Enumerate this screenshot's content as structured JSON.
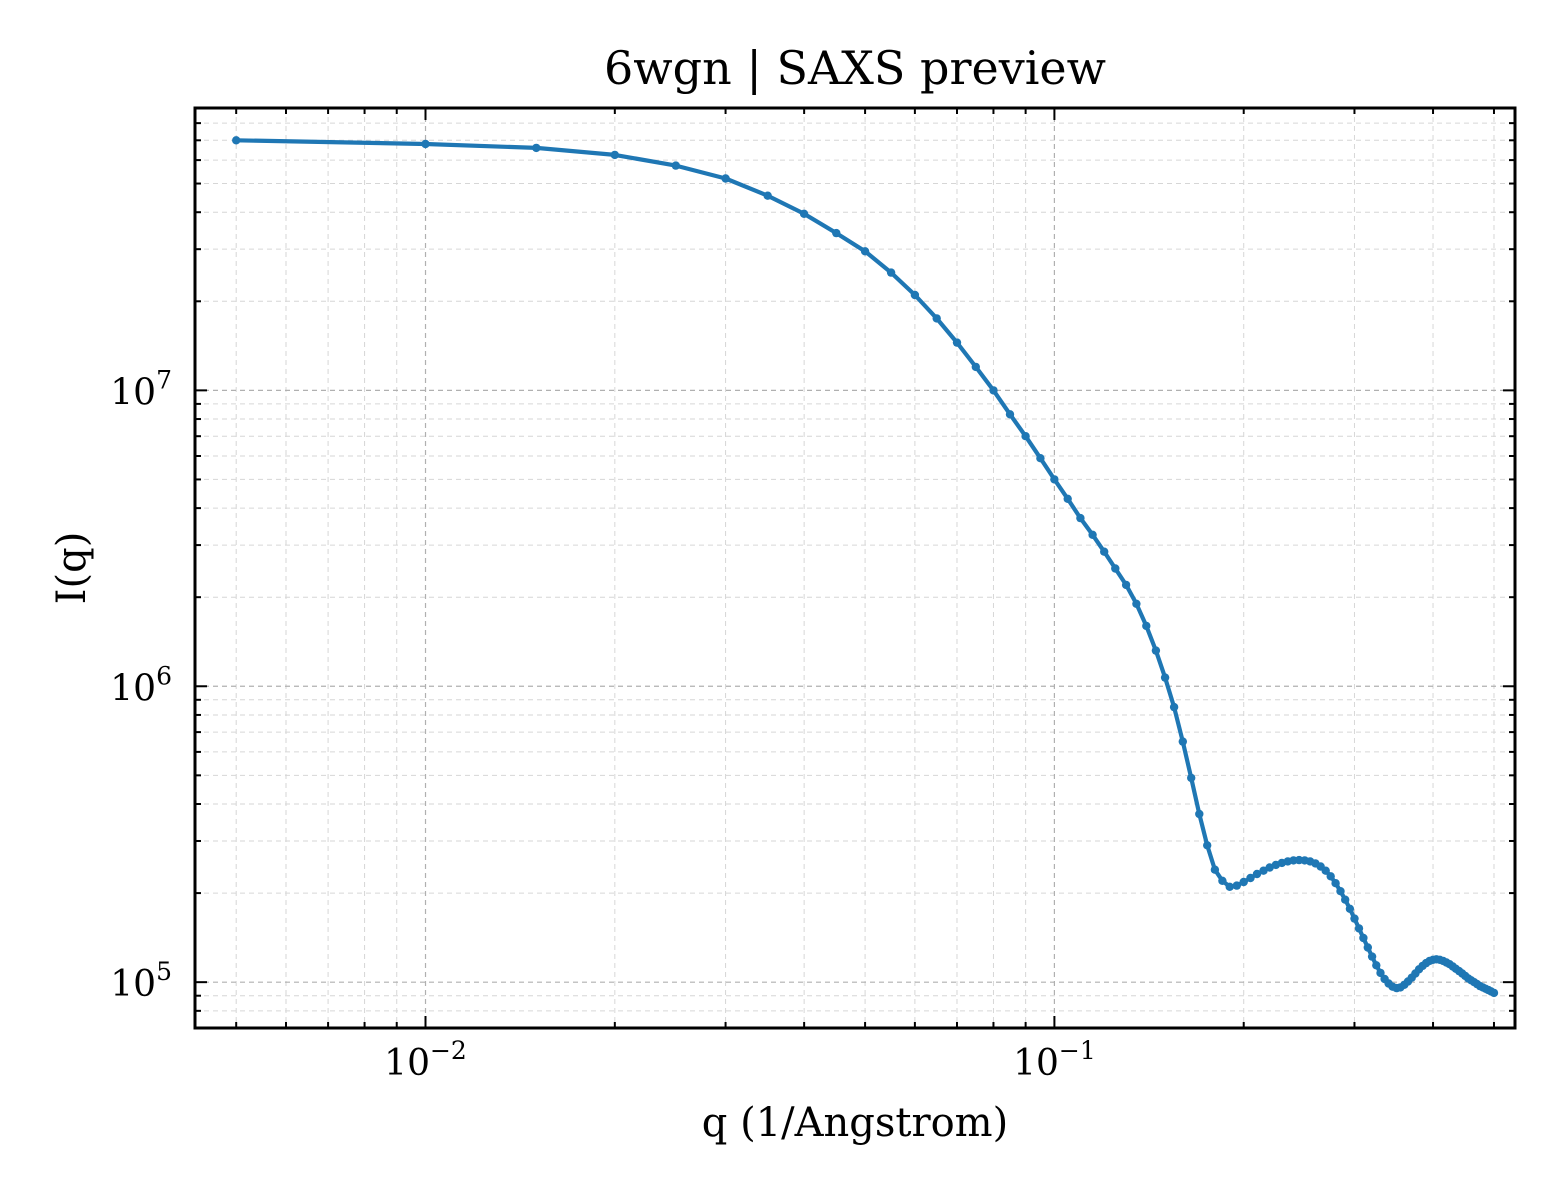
{
  "chart_data": {
    "type": "line",
    "title": "6wgn | SAXS preview",
    "xlabel": "q (1/Angstrom)",
    "ylabel": "I(q)",
    "xscale": "log",
    "yscale": "log",
    "xlim": [
      0.0043,
      0.54
    ],
    "ylim": [
      70000,
      90000000
    ],
    "grid": true,
    "xticks": [
      {
        "value": 0.01,
        "base": "10",
        "exp": "−2"
      },
      {
        "value": 0.1,
        "base": "10",
        "exp": "−1"
      }
    ],
    "yticks": [
      {
        "value": 100000,
        "base": "10",
        "exp": "5"
      },
      {
        "value": 1000000,
        "base": "10",
        "exp": "6"
      },
      {
        "value": 10000000,
        "base": "10",
        "exp": "7"
      }
    ],
    "series": [
      {
        "color": "#1f77b4",
        "marker": "circle",
        "x": [
          0.005,
          0.01,
          0.015,
          0.02,
          0.025,
          0.03,
          0.035,
          0.04,
          0.045,
          0.05,
          0.055,
          0.06,
          0.065,
          0.07,
          0.075,
          0.08,
          0.085,
          0.09,
          0.095,
          0.1,
          0.105,
          0.11,
          0.115,
          0.12,
          0.125,
          0.13,
          0.135,
          0.14,
          0.145,
          0.15,
          0.155,
          0.16,
          0.165,
          0.17,
          0.175,
          0.18,
          0.185,
          0.19,
          0.195,
          0.2,
          0.205,
          0.21,
          0.215,
          0.22,
          0.225,
          0.23,
          0.235,
          0.24,
          0.245,
          0.25,
          0.255,
          0.26,
          0.265,
          0.27,
          0.275,
          0.28,
          0.285,
          0.29,
          0.295,
          0.3,
          0.305,
          0.31,
          0.315,
          0.32,
          0.325,
          0.33,
          0.335,
          0.34,
          0.345,
          0.35,
          0.355,
          0.36,
          0.365,
          0.37,
          0.375,
          0.38,
          0.385,
          0.39,
          0.395,
          0.4,
          0.405,
          0.41,
          0.415,
          0.42,
          0.425,
          0.43,
          0.435,
          0.44,
          0.445,
          0.45,
          0.455,
          0.46,
          0.465,
          0.47,
          0.475,
          0.48,
          0.485,
          0.49,
          0.495,
          0.5
        ],
        "y": [
          70000000,
          68000000,
          66000000,
          62500000,
          57500000,
          52000000,
          45500000,
          39500000,
          34000000,
          29500000,
          25000000,
          21000000,
          17500000,
          14500000,
          12000000,
          10000000,
          8300000,
          7000000,
          5900000,
          5000000,
          4300000,
          3700000,
          3250000,
          2850000,
          2500000,
          2200000,
          1900000,
          1600000,
          1320000,
          1070000,
          850000,
          650000,
          490000,
          370000,
          290000,
          240000,
          220000,
          210000,
          212000,
          218000,
          225000,
          232000,
          238000,
          244000,
          249000,
          253000,
          256000,
          258000,
          258500,
          258000,
          256000,
          252000,
          246000,
          238000,
          228000,
          216000,
          203000,
          190000,
          177000,
          164000,
          152000,
          141000,
          131000,
          122000,
          114000,
          107500,
          102500,
          99000,
          96500,
          95500,
          96000,
          98000,
          100500,
          103500,
          107000,
          110500,
          113500,
          116000,
          118000,
          119000,
          119500,
          119000,
          118000,
          116500,
          115000,
          113000,
          111000,
          109000,
          107000,
          105000,
          103000,
          101500,
          100000,
          98500,
          97000,
          96000,
          95000,
          94000,
          93000,
          92000
        ]
      }
    ]
  }
}
